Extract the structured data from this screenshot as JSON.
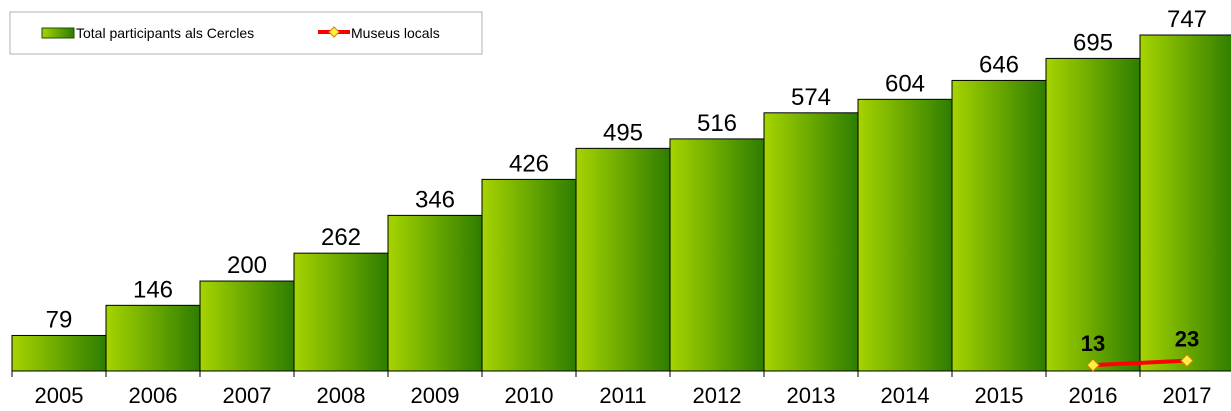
{
  "chart_data": {
    "type": "bar",
    "categories": [
      "2005",
      "2006",
      "2007",
      "2008",
      "2009",
      "2010",
      "2011",
      "2012",
      "2013",
      "2014",
      "2015",
      "2016",
      "2017"
    ],
    "series": [
      {
        "name": "Total participants als Cercles",
        "type": "bar",
        "values": [
          79,
          146,
          200,
          262,
          346,
          426,
          495,
          516,
          574,
          604,
          646,
          695,
          747
        ],
        "color_light": "#a6d400",
        "color_dark": "#2e7d00"
      },
      {
        "name": "Museus locals",
        "type": "line",
        "x": [
          "2016",
          "2017"
        ],
        "values": [
          13,
          23
        ],
        "line_color": "#ff0000",
        "marker_color": "#ffee44"
      }
    ],
    "ylim": [
      0,
      760
    ],
    "legend_position": "top-left",
    "grid": false
  }
}
